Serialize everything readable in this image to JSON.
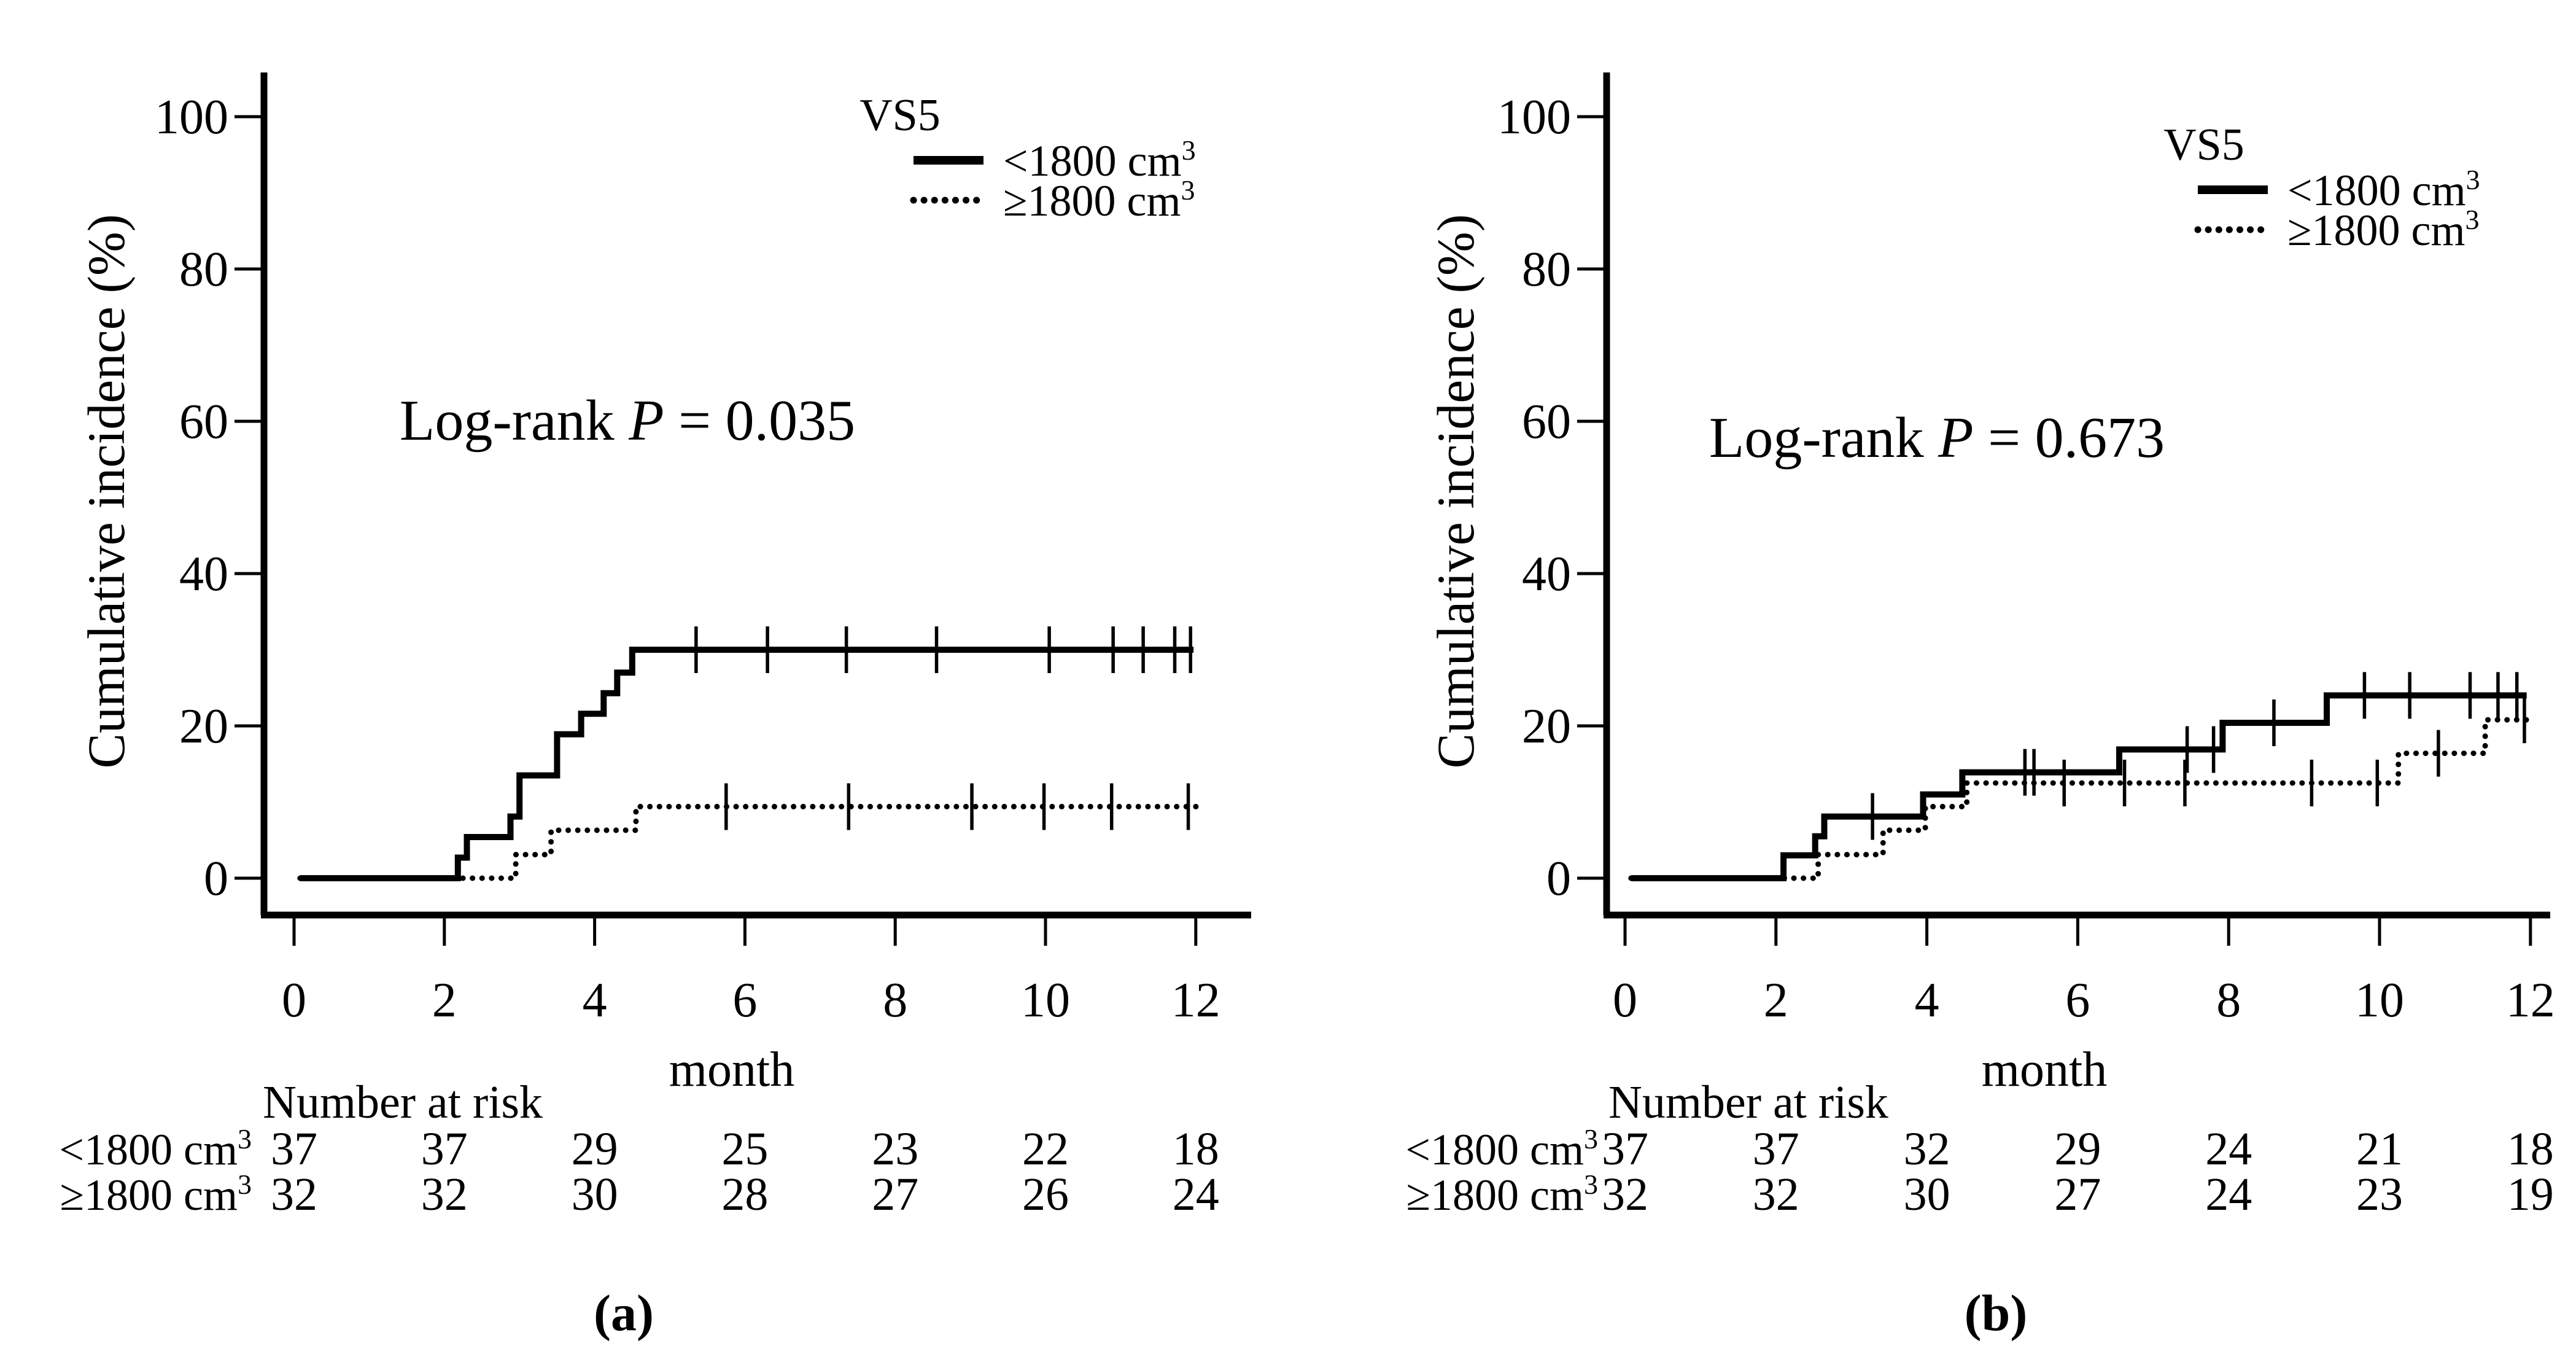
{
  "figure": {
    "background": "#ffffff",
    "ink": "#000000"
  },
  "chart_data": [
    {
      "id": "a",
      "type": "line",
      "subtype": "kaplan-meier-step",
      "caption": "(a)",
      "xlabel": "month",
      "ylabel": "Cumulative incidence (%)",
      "xlim": [
        0,
        12.6
      ],
      "ylim": [
        0,
        105
      ],
      "xticks": [
        0,
        2,
        4,
        6,
        8,
        10,
        12
      ],
      "yticks": [
        0,
        20,
        40,
        60,
        80,
        100
      ],
      "grid": false,
      "legend_position": "top-right",
      "annotation": {
        "text": "Log-rank",
        "p": "P",
        "rest": "= 0.035"
      },
      "legend": {
        "title": "VS5",
        "entries": [
          {
            "style": "solid",
            "base": "<1800 cm",
            "sup": "3"
          },
          {
            "style": "dotted",
            "base": "≥1800 cm",
            "sup": "3"
          }
        ]
      },
      "series": [
        {
          "name": "<1800 cm3",
          "style": "solid",
          "start": [
            0.08,
            0
          ],
          "steps": [
            [
              2.18,
              2.7
            ],
            [
              2.3,
              5.4
            ],
            [
              2.88,
              8.1
            ],
            [
              3.0,
              13.5
            ],
            [
              3.5,
              18.9
            ],
            [
              3.82,
              21.6
            ],
            [
              4.12,
              24.3
            ],
            [
              4.3,
              27.0
            ],
            [
              4.5,
              30.0
            ]
          ],
          "end_x": 11.97,
          "censors": [
            [
              5.35,
              30
            ],
            [
              6.3,
              30
            ],
            [
              7.35,
              30
            ],
            [
              8.55,
              30
            ],
            [
              10.05,
              30
            ],
            [
              10.9,
              30
            ],
            [
              11.3,
              30
            ],
            [
              11.72,
              30
            ],
            [
              11.93,
              30
            ]
          ]
        },
        {
          "name": "≥1800 cm3",
          "style": "dotted",
          "start": [
            0.08,
            0
          ],
          "steps": [
            [
              2.95,
              3.1
            ],
            [
              3.42,
              6.3
            ],
            [
              4.55,
              9.4
            ]
          ],
          "end_x": 12.02,
          "censors": [
            [
              5.75,
              9.4
            ],
            [
              7.38,
              9.4
            ],
            [
              9.02,
              9.4
            ],
            [
              9.98,
              9.4
            ],
            [
              10.88,
              9.4
            ],
            [
              11.9,
              9.4
            ]
          ]
        }
      ],
      "risk_table": {
        "title": "Number at risk",
        "time_points": [
          0,
          2,
          4,
          6,
          8,
          10,
          12
        ],
        "rows": [
          {
            "base": "<1800 cm",
            "sup": "3",
            "counts": [
              37,
              37,
              29,
              25,
              23,
              22,
              18
            ]
          },
          {
            "base": "≥1800 cm",
            "sup": "3",
            "counts": [
              32,
              32,
              30,
              28,
              27,
              26,
              24
            ]
          }
        ]
      }
    },
    {
      "id": "b",
      "type": "line",
      "subtype": "kaplan-meier-step",
      "caption": "(b)",
      "xlabel": "month",
      "ylabel": "Cumulative incidence (%)",
      "xlim": [
        0,
        12.6
      ],
      "ylim": [
        0,
        105
      ],
      "xticks": [
        0,
        2,
        4,
        6,
        8,
        10,
        12
      ],
      "yticks": [
        0,
        20,
        40,
        60,
        80,
        100
      ],
      "grid": false,
      "legend_position": "top-right",
      "annotation": {
        "text": "Log-rank",
        "p": "P",
        "rest": "= 0.673"
      },
      "legend": {
        "title": "VS5",
        "entries": [
          {
            "style": "solid",
            "base": "<1800 cm",
            "sup": "3"
          },
          {
            "style": "dotted",
            "base": "≥1800 cm",
            "sup": "3"
          }
        ]
      },
      "series": [
        {
          "name": "<1800 cm3",
          "style": "solid",
          "start": [
            0.08,
            0
          ],
          "steps": [
            [
              2.1,
              3.0
            ],
            [
              2.52,
              5.5
            ],
            [
              2.64,
              8.1
            ],
            [
              3.95,
              11.0
            ],
            [
              4.47,
              13.9
            ],
            [
              6.55,
              16.9
            ],
            [
              7.92,
              20.4
            ],
            [
              9.3,
              24.0
            ]
          ],
          "end_x": 11.95,
          "censors": [
            [
              3.28,
              8.1
            ],
            [
              5.3,
              13.9
            ],
            [
              5.42,
              13.9
            ],
            [
              7.45,
              16.9
            ],
            [
              7.8,
              16.9
            ],
            [
              8.6,
              20.4
            ],
            [
              9.8,
              24.0
            ],
            [
              10.4,
              24.0
            ],
            [
              11.2,
              24.0
            ],
            [
              11.57,
              24.0
            ],
            [
              11.82,
              24.0
            ]
          ]
        },
        {
          "name": "≥1800 cm3",
          "style": "dotted",
          "start": [
            0.08,
            0
          ],
          "steps": [
            [
              2.56,
              3.1
            ],
            [
              3.42,
              6.3
            ],
            [
              3.98,
              9.4
            ],
            [
              4.53,
              12.5
            ],
            [
              10.25,
              16.4
            ],
            [
              11.4,
              20.8
            ]
          ],
          "end_x": 12.05,
          "censors": [
            [
              5.82,
              12.5
            ],
            [
              6.62,
              12.5
            ],
            [
              7.42,
              12.5
            ],
            [
              9.1,
              12.5
            ],
            [
              9.97,
              12.5
            ],
            [
              10.78,
              16.4
            ],
            [
              11.92,
              20.8
            ]
          ]
        }
      ],
      "risk_table": {
        "title": "Number at risk",
        "time_points": [
          0,
          2,
          4,
          6,
          8,
          10,
          12
        ],
        "rows": [
          {
            "base": "<1800 cm",
            "sup": "3",
            "counts": [
              37,
              37,
              32,
              29,
              24,
              21,
              18
            ]
          },
          {
            "base": "≥1800 cm",
            "sup": "3",
            "counts": [
              32,
              32,
              30,
              27,
              24,
              23,
              19
            ]
          }
        ]
      }
    }
  ]
}
